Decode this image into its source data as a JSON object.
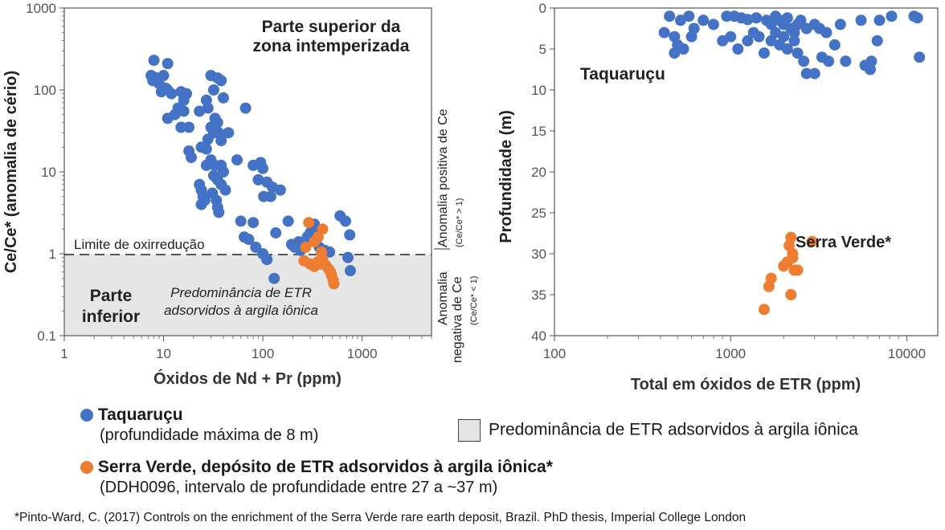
{
  "colors": {
    "taquarucu": "#4472C4",
    "serra_verde": "#ED7D31",
    "shade": "#E6E6E6"
  },
  "chart_data": [
    {
      "type": "scatter",
      "x_scale": "log",
      "y_scale": "log",
      "xlim": [
        1,
        5000
      ],
      "ylim": [
        0.1,
        1000
      ],
      "xlabel": "Óxidos de Nd + Pr (ppm)",
      "ylabel": "Ce/Ce* (anomalia de cério)",
      "x_ticks": [
        "1",
        "10",
        "100",
        "1000"
      ],
      "y_ticks": [
        "0.1",
        "1",
        "10",
        "100",
        "1000"
      ],
      "grid": false,
      "threshold": {
        "y": 1,
        "label": "Limite de oxirredução"
      },
      "annotations": {
        "top_title": [
          "Parte superior da",
          "zona intemperizada"
        ],
        "lower_label": [
          "Parte",
          "inferior"
        ],
        "shaded_label": [
          "Predominância de ETR",
          "adsorvidos à argila iônica"
        ],
        "right_upper": [
          "Anomalia positiva de Ce",
          "(Ce/Ce* > 1)"
        ],
        "right_lower": [
          "Anomalia",
          "negativa de Ce",
          "(Ce/Ce* < 1)"
        ]
      },
      "series": [
        {
          "name": "Taquaruçu",
          "points": [
            [
              8,
              230
            ],
            [
              11,
              210
            ],
            [
              7.5,
              150
            ],
            [
              8.5,
              140
            ],
            [
              9,
              120
            ],
            [
              10,
              150
            ],
            [
              10.5,
              105
            ],
            [
              7.8,
              130
            ],
            [
              9.5,
              95
            ],
            [
              11,
              100
            ],
            [
              12,
              90
            ],
            [
              15,
              95
            ],
            [
              17,
              90
            ],
            [
              16,
              75
            ],
            [
              14,
              60
            ],
            [
              13,
              50
            ],
            [
              11,
              45
            ],
            [
              16,
              55
            ],
            [
              15,
              35
            ],
            [
              18,
              35
            ],
            [
              23,
              55
            ],
            [
              27,
              75
            ],
            [
              30,
              150
            ],
            [
              35,
              140
            ],
            [
              38,
              130
            ],
            [
              32,
              100
            ],
            [
              40,
              80
            ],
            [
              28,
              60
            ],
            [
              33,
              45
            ],
            [
              35,
              40
            ],
            [
              30,
              35
            ],
            [
              32,
              30
            ],
            [
              28,
              25
            ],
            [
              36,
              30
            ],
            [
              38,
              24
            ],
            [
              45,
              30
            ],
            [
              67,
              60
            ],
            [
              18,
              18
            ],
            [
              19,
              15
            ],
            [
              24,
              20
            ],
            [
              27,
              19
            ],
            [
              30,
              14
            ],
            [
              27,
              12
            ],
            [
              33,
              12
            ],
            [
              38,
              12
            ],
            [
              40,
              10
            ],
            [
              32,
              9
            ],
            [
              35,
              8
            ],
            [
              38,
              7
            ],
            [
              42,
              6
            ],
            [
              23,
              7
            ],
            [
              24,
              6
            ],
            [
              25,
              5
            ],
            [
              26,
              4.5
            ],
            [
              24,
              4
            ],
            [
              31,
              5.5
            ],
            [
              34,
              4.5
            ],
            [
              35,
              3.7
            ],
            [
              36,
              3.2
            ],
            [
              55,
              14
            ],
            [
              80,
              12
            ],
            [
              95,
              13
            ],
            [
              100,
              11
            ],
            [
              90,
              8
            ],
            [
              110,
              7.5
            ],
            [
              125,
              6.5
            ],
            [
              150,
              6
            ],
            [
              102,
              5
            ],
            [
              120,
              5
            ],
            [
              60,
              2.5
            ],
            [
              80,
              2.4
            ],
            [
              65,
              1.6
            ],
            [
              72,
              1.5
            ],
            [
              85,
              1.2
            ],
            [
              100,
              1.0
            ],
            [
              110,
              0.85
            ],
            [
              135,
              1.8
            ],
            [
              180,
              2.5
            ],
            [
              210,
              1.2
            ],
            [
              230,
              1.4
            ],
            [
              260,
              1.3
            ],
            [
              280,
              1.6
            ],
            [
              300,
              1.8
            ],
            [
              330,
              2.3
            ],
            [
              350,
              1.9
            ],
            [
              370,
              1.2
            ],
            [
              420,
              1.1
            ],
            [
              470,
              1.05
            ],
            [
              600,
              2.9
            ],
            [
              680,
              2.5
            ],
            [
              750,
              1.7
            ],
            [
              720,
              0.9
            ],
            [
              760,
              0.62
            ],
            [
              130,
              0.5
            ],
            [
              195,
              1.3
            ],
            [
              240,
              1.1
            ]
          ]
        },
        {
          "name": "Serra Verde, depósito de ETR adsorvidos à argila iônica*",
          "points": [
            [
              290,
              2.4
            ],
            [
              400,
              2.0
            ],
            [
              360,
              1.6
            ],
            [
              330,
              1.4
            ],
            [
              270,
              1.2
            ],
            [
              390,
              1.05
            ],
            [
              260,
              0.82
            ],
            [
              300,
              0.75
            ],
            [
              330,
              0.7
            ],
            [
              380,
              0.75
            ],
            [
              400,
              0.85
            ],
            [
              430,
              0.72
            ],
            [
              460,
              0.65
            ],
            [
              490,
              0.55
            ],
            [
              510,
              0.48
            ],
            [
              480,
              0.6
            ],
            [
              520,
              0.43
            ],
            [
              360,
              0.8
            ]
          ]
        }
      ]
    },
    {
      "type": "scatter",
      "x_scale": "log",
      "xlim": [
        100,
        15000
      ],
      "ylim": [
        40,
        0
      ],
      "y_reversed": true,
      "xlabel": "Total em óxidos de ETR (ppm)",
      "ylabel": "Profundidade (m)",
      "x_ticks": [
        "100",
        "1000",
        "10000"
      ],
      "y_ticks": [
        "0",
        "5",
        "10",
        "15",
        "20",
        "25",
        "30",
        "35",
        "40"
      ],
      "grid": false,
      "series": [
        {
          "name": "Taquaruçu",
          "points": [
            [
              450,
              1
            ],
            [
              520,
              1.5
            ],
            [
              580,
              1
            ],
            [
              620,
              2.5
            ],
            [
              700,
              1.5
            ],
            [
              800,
              2
            ],
            [
              950,
              1
            ],
            [
              1050,
              1
            ],
            [
              1150,
              1.2
            ],
            [
              1250,
              1.4
            ],
            [
              1400,
              1.2
            ],
            [
              1600,
              1.5
            ],
            [
              1700,
              2
            ],
            [
              1800,
              1
            ],
            [
              1900,
              1.5
            ],
            [
              2000,
              2
            ],
            [
              2100,
              1.2
            ],
            [
              2200,
              2.5
            ],
            [
              2300,
              3
            ],
            [
              2400,
              2
            ],
            [
              2500,
              1.5
            ],
            [
              2700,
              2.5
            ],
            [
              3000,
              2
            ],
            [
              3200,
              2.5
            ],
            [
              3500,
              3
            ],
            [
              4200,
              2
            ],
            [
              5500,
              1.5
            ],
            [
              7000,
              1.5
            ],
            [
              8200,
              1
            ],
            [
              11000,
              1
            ],
            [
              11500,
              1.2
            ],
            [
              420,
              3
            ],
            [
              480,
              3.5
            ],
            [
              500,
              4.5
            ],
            [
              540,
              5
            ],
            [
              480,
              5.5
            ],
            [
              600,
              3.5
            ],
            [
              900,
              4
            ],
            [
              1000,
              3.5
            ],
            [
              1100,
              5
            ],
            [
              1250,
              4
            ],
            [
              1350,
              3
            ],
            [
              1450,
              3.5
            ],
            [
              1550,
              5.5
            ],
            [
              1700,
              4
            ],
            [
              1800,
              3
            ],
            [
              1900,
              4.5
            ],
            [
              2000,
              3.5
            ],
            [
              2100,
              5
            ],
            [
              2300,
              4
            ],
            [
              2400,
              5.5
            ],
            [
              2600,
              6.5
            ],
            [
              2700,
              8
            ],
            [
              3000,
              8
            ],
            [
              3300,
              6
            ],
            [
              3600,
              6.5
            ],
            [
              3900,
              4.5
            ],
            [
              4500,
              6.5
            ],
            [
              5800,
              7
            ],
            [
              6200,
              7.5
            ],
            [
              6300,
              6.5
            ],
            [
              6800,
              4
            ],
            [
              11800,
              6
            ]
          ]
        },
        {
          "name": "Serra Verde, depósito de ETR adsorvidos à argila iônica*",
          "label": "Serra Verde*",
          "points": [
            [
              2200,
              28
            ],
            [
              2150,
              29
            ],
            [
              2250,
              30
            ],
            [
              2100,
              31
            ],
            [
              2300,
              32
            ],
            [
              2000,
              31.5
            ],
            [
              2900,
              28.5
            ],
            [
              1700,
              33
            ],
            [
              1650,
              34
            ],
            [
              2200,
              35
            ],
            [
              1550,
              36.8
            ],
            [
              2250,
              30.5
            ],
            [
              2400,
              32
            ]
          ]
        }
      ],
      "annotations": {
        "group_label": "Taquaruçu"
      }
    }
  ],
  "legend": {
    "taquarucu_name": "Taquaruçu",
    "taquarucu_note": "(profundidade máxima de 8 m)",
    "serra_name": "Serra Verde, depósito de ETR adsorvidos à argila iônica*",
    "serra_note": "(DDH0096, intervalo de profundidade entre 27 a ~37 m)",
    "shaded_name": "Predominância de ETR adsorvidos à argila iônica"
  },
  "footnote": "*Pinto-Ward, C. (2017) Controls on the enrichment of the Serra Verde rare earth deposit, Brazil. PhD thesis, Imperial College London"
}
